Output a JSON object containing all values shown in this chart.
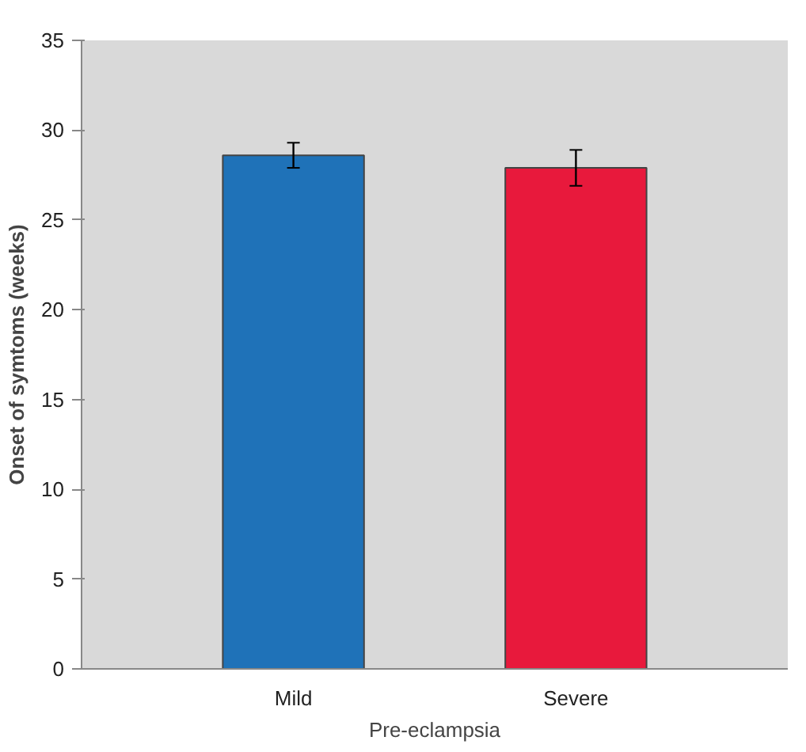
{
  "chart_data": {
    "type": "bar",
    "xlabel": "Pre-eclampsia",
    "ylabel": "Onset of symtoms (weeks)",
    "categories": [
      "Mild",
      "Severe"
    ],
    "values": [
      28.6,
      27.9
    ],
    "colors": [
      "#1f72b8",
      "#e8193c"
    ],
    "errors": [
      0.7,
      1.0
    ],
    "ylim": [
      0,
      35
    ],
    "yticks": [
      0,
      5,
      10,
      15,
      20,
      25,
      30,
      35
    ],
    "grid": false
  }
}
